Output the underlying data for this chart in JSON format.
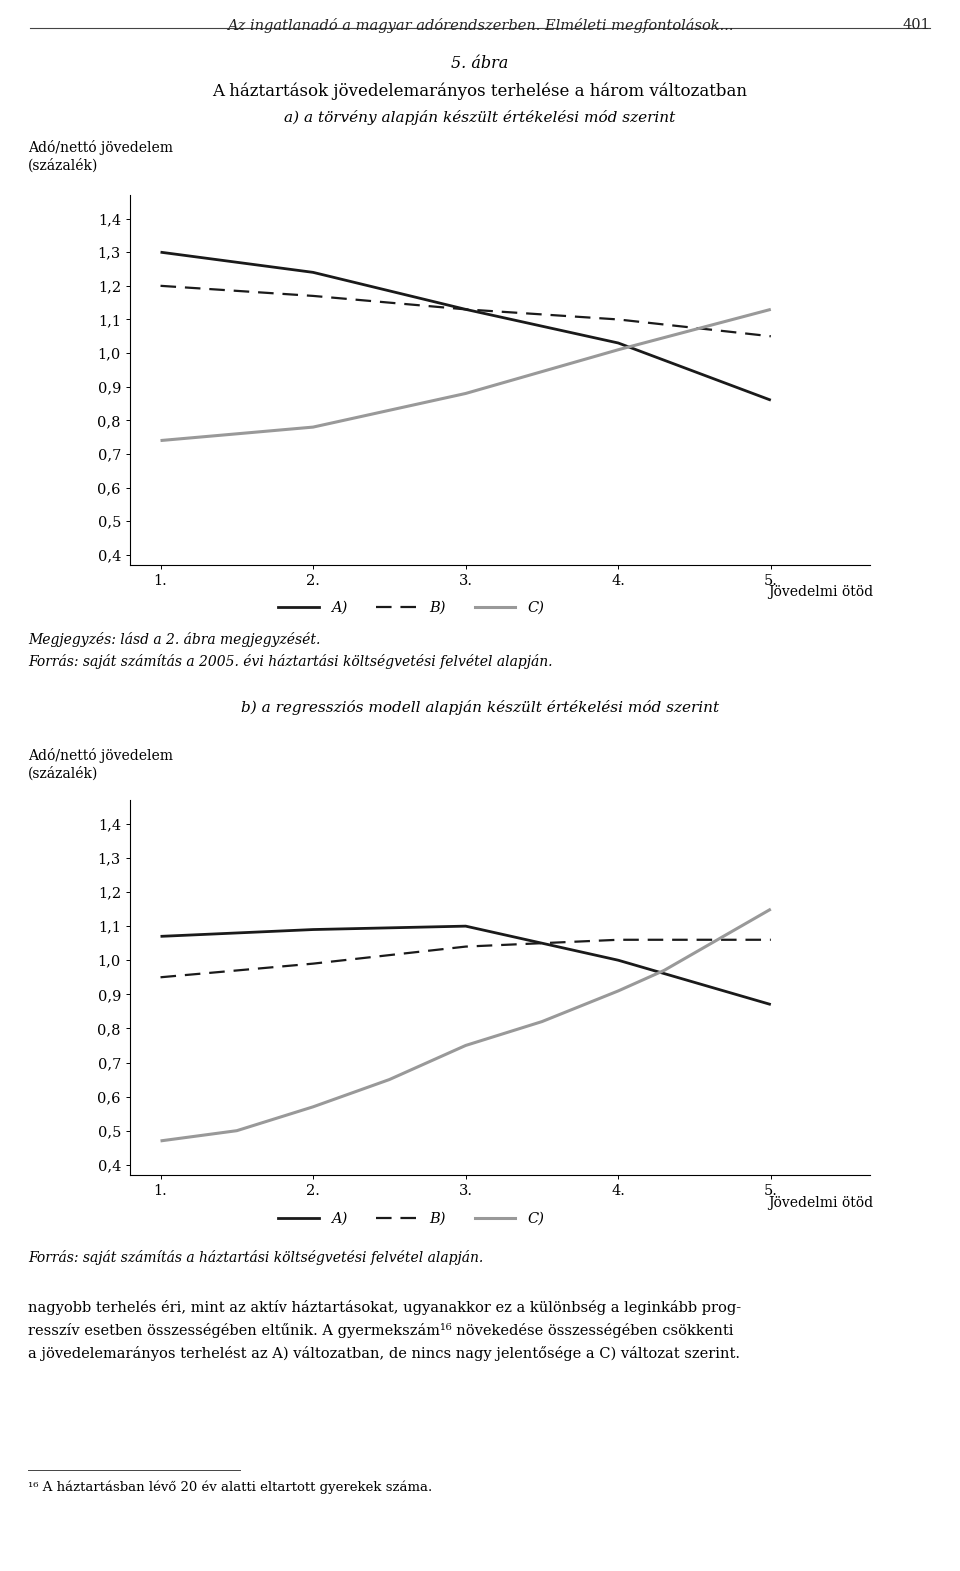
{
  "page_header": "Az ingatlanadó a magyar adórendszerben. Elméleti megfontolások...",
  "page_number": "401",
  "main_title_line1": "5. ábra",
  "main_title_line2": "A háztartások jövedelemarányos terhelése a három változatban",
  "subtitle_a": "a) a törvény alapján készült értékelési mód szerint",
  "subtitle_b": "b) a regressziós modell alapján készült értékelési mód szerint",
  "ylabel_line1": "Adó/nettó jövedelem",
  "ylabel_line2": "(százalék)",
  "xlabel_right": "Jövedelmi ötöd",
  "xticks": [
    1,
    2,
    3,
    4,
    5
  ],
  "yticks": [
    0.4,
    0.5,
    0.6,
    0.7,
    0.8,
    0.9,
    1.0,
    1.1,
    1.2,
    1.3,
    1.4
  ],
  "ylim": [
    0.37,
    1.47
  ],
  "xlim": [
    0.8,
    5.65
  ],
  "chart_a_A": [
    1.3,
    1.24,
    1.13,
    1.03,
    0.86
  ],
  "chart_a_B": [
    1.2,
    1.17,
    1.13,
    1.1,
    1.05
  ],
  "chart_a_C": [
    0.74,
    0.78,
    0.88,
    1.01,
    1.13
  ],
  "chart_b_A": [
    1.07,
    1.09,
    1.1,
    1.0,
    0.87
  ],
  "chart_b_B": [
    0.95,
    0.99,
    1.04,
    1.06,
    1.06
  ],
  "chart_b_C_x": [
    1,
    1.5,
    2,
    2.5,
    3,
    3.5,
    4,
    4.3,
    5
  ],
  "chart_b_C_y": [
    0.47,
    0.5,
    0.57,
    0.65,
    0.75,
    0.82,
    0.91,
    0.97,
    1.15
  ],
  "x": [
    1,
    2,
    3,
    4,
    5
  ],
  "legend_labels": [
    "A)",
    "B)",
    "C)"
  ],
  "note1": "Megjegyzés: lásd a 2. ábra megjegyzését.",
  "note2": "Forrás: saját számítás a 2005. évi háztartási költségvetési felvétel alapján.",
  "note3": "Forrás: saját számítás a háztartási költségvetési felvétel alapján.",
  "footer1": "nagyobb terhelés éri, mint az aktív háztartásokat, ugyanakkor ez a különbség a leginkább prog-",
  "footer2": "resszív esetben összességében eltűnik. A gyermekszám¹⁶ növekedése összességében csökkenti",
  "footer3": "a jövedelemarányos terhelést az A) változatban, de nincs nagy jelentősége a C) változat szerint.",
  "footnote": "¹⁶ A háztartásban lévő 20 év alatti eltartott gyerekek száma.",
  "color_A": "#1a1a1a",
  "color_B": "#1a1a1a",
  "color_C": "#999999",
  "bg_color": "#ffffff"
}
